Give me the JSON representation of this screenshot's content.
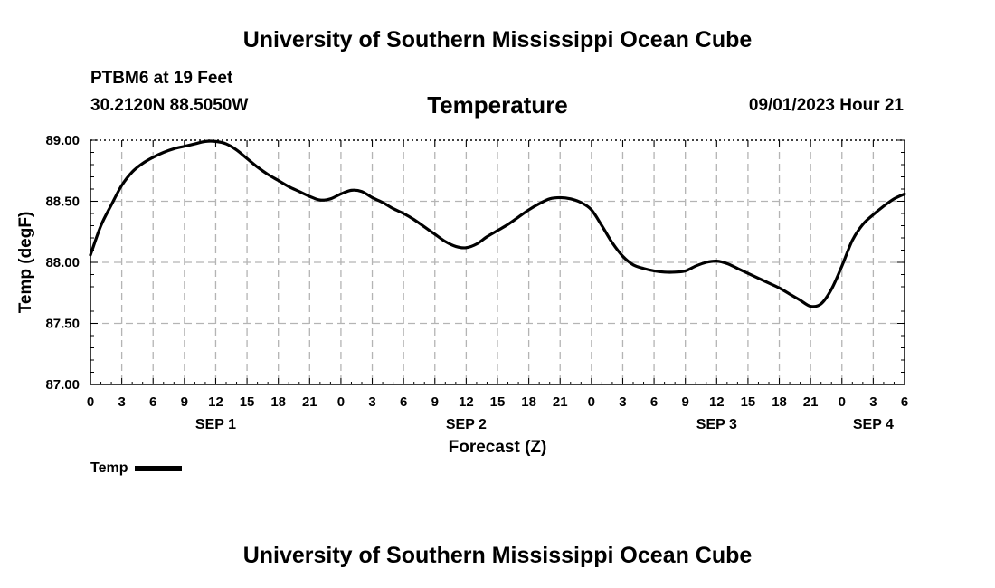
{
  "header": {
    "title": "University of Southern Mississippi Ocean Cube",
    "station": "PTBM6 at 19 Feet",
    "coords": "30.2120N  88.5050W",
    "chart_title": "Temperature",
    "datetime": "09/01/2023 Hour 21"
  },
  "footer": {
    "title": "University of Southern Mississippi Ocean Cube"
  },
  "colors": {
    "line": "#000000",
    "grid": "#b4b4b4",
    "frame": "#000000"
  },
  "chart_data": {
    "type": "line",
    "title": "Temperature",
    "xlabel": "Forecast (Z)",
    "ylabel": "Temp (degF)",
    "xlim": [
      0,
      78
    ],
    "ylim": [
      87.0,
      89.0
    ],
    "x_tick_hours": [
      0,
      3,
      6,
      9,
      12,
      15,
      18,
      21,
      24,
      27,
      30,
      33,
      36,
      39,
      42,
      45,
      48,
      51,
      54,
      57,
      60,
      63,
      66,
      69,
      72,
      75,
      78
    ],
    "x_tick_labels": [
      "0",
      "3",
      "6",
      "9",
      "12",
      "15",
      "18",
      "21",
      "0",
      "3",
      "6",
      "9",
      "12",
      "15",
      "18",
      "21",
      "0",
      "3",
      "6",
      "9",
      "12",
      "15",
      "18",
      "21",
      "0",
      "3",
      "6"
    ],
    "y_ticks": [
      87.0,
      87.5,
      88.0,
      88.5,
      89.0
    ],
    "y_tick_labels": [
      "87.00",
      "87.50",
      "88.00",
      "88.50",
      "89.00"
    ],
    "day_labels": [
      {
        "hour": 12,
        "label": "SEP 1"
      },
      {
        "hour": 36,
        "label": "SEP 2"
      },
      {
        "hour": 60,
        "label": "SEP 3"
      },
      {
        "hour": 75,
        "label": "SEP 4"
      }
    ],
    "grid": true,
    "legend_position": "bottom-left",
    "series": [
      {
        "name": "Temp",
        "x": [
          0,
          1,
          2,
          3,
          4,
          5,
          6,
          7,
          8,
          9,
          10,
          11,
          12,
          13,
          14,
          15,
          16,
          17,
          18,
          19,
          20,
          21,
          22,
          23,
          24,
          25,
          26,
          27,
          28,
          29,
          30,
          31,
          32,
          33,
          34,
          35,
          36,
          37,
          38,
          39,
          40,
          41,
          42,
          43,
          44,
          45,
          46,
          47,
          48,
          49,
          50,
          51,
          52,
          53,
          54,
          55,
          56,
          57,
          58,
          59,
          60,
          61,
          62,
          63,
          64,
          65,
          66,
          67,
          68,
          69,
          70,
          71,
          72,
          73,
          74,
          75,
          76,
          77,
          78
        ],
        "values": [
          88.06,
          88.3,
          88.47,
          88.63,
          88.74,
          88.81,
          88.86,
          88.9,
          88.93,
          88.95,
          88.97,
          88.99,
          88.99,
          88.97,
          88.92,
          88.85,
          88.78,
          88.72,
          88.67,
          88.62,
          88.58,
          88.54,
          88.51,
          88.52,
          88.56,
          88.59,
          88.58,
          88.53,
          88.49,
          88.44,
          88.4,
          88.35,
          88.29,
          88.23,
          88.17,
          88.13,
          88.12,
          88.15,
          88.21,
          88.26,
          88.31,
          88.37,
          88.43,
          88.48,
          88.52,
          88.53,
          88.52,
          88.49,
          88.43,
          88.3,
          88.16,
          88.05,
          87.98,
          87.95,
          87.93,
          87.92,
          87.92,
          87.93,
          87.97,
          88.0,
          88.01,
          87.99,
          87.95,
          87.91,
          87.87,
          87.83,
          87.79,
          87.74,
          87.69,
          87.64,
          87.66,
          87.78,
          87.97,
          88.18,
          88.31,
          88.39,
          88.46,
          88.52,
          88.56
        ]
      }
    ]
  }
}
